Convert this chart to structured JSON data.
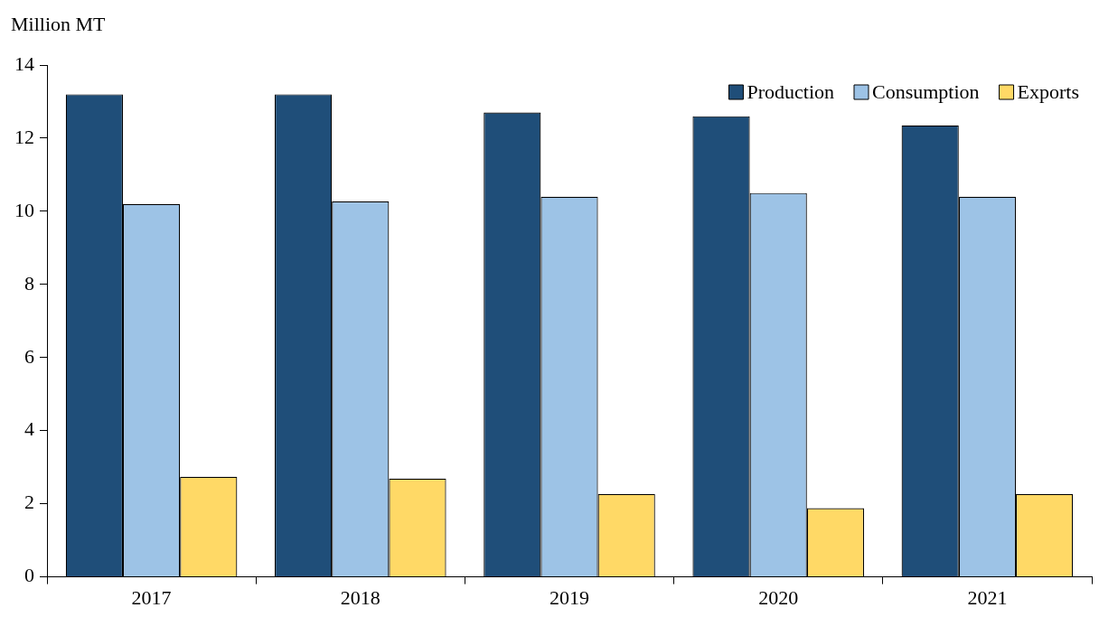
{
  "chart_data": {
    "type": "bar",
    "ylabel": "Million MT",
    "categories": [
      "2017",
      "2018",
      "2019",
      "2020",
      "2021"
    ],
    "series": [
      {
        "name": "Production",
        "color": "#1f4e79",
        "values": [
          13.2,
          13.2,
          12.7,
          12.6,
          12.35
        ]
      },
      {
        "name": "Consumption",
        "color": "#9dc3e6",
        "values": [
          10.2,
          10.27,
          10.4,
          10.5,
          10.4
        ]
      },
      {
        "name": "Exports",
        "color": "#ffd966",
        "values": [
          2.74,
          2.69,
          2.27,
          1.88,
          2.27
        ]
      }
    ],
    "ylim": [
      0,
      14
    ],
    "yticks": [
      0,
      2,
      4,
      6,
      8,
      10,
      12,
      14
    ],
    "grid": false,
    "legend": "top right"
  }
}
